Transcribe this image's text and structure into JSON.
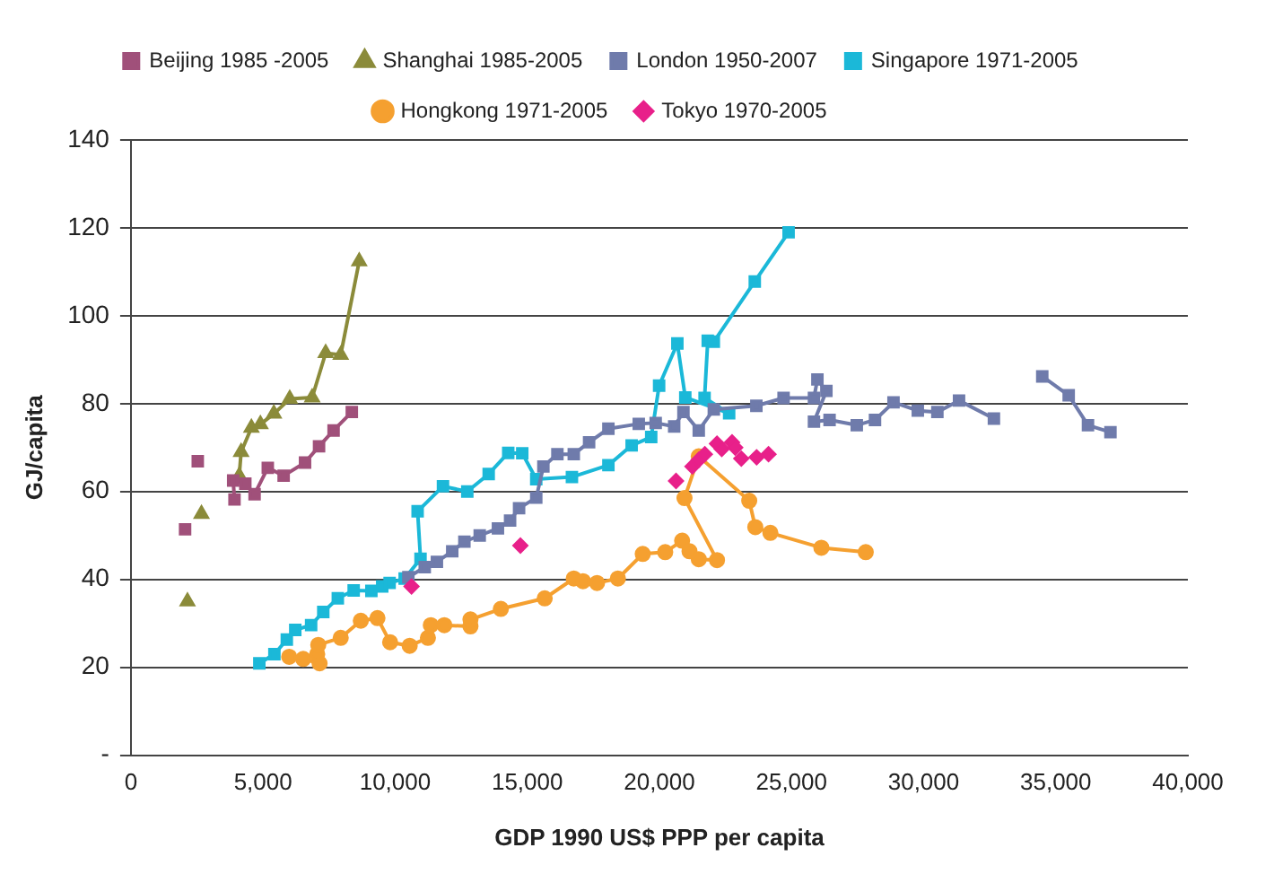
{
  "chart_data": {
    "type": "line",
    "xlabel": "GDP 1990 US$ PPP per capita",
    "ylabel": "GJ/capita",
    "xlim": [
      0,
      40000
    ],
    "xticks": [
      0,
      {
        "value": 5000,
        "label": "5,000"
      },
      {
        "value": 10000,
        "label": "10,000"
      },
      {
        "value": 15000,
        "label": "15,000"
      },
      {
        "value": 20000,
        "label": "20,000"
      },
      {
        "value": 25000,
        "label": "25,000"
      },
      {
        "value": 30000,
        "label": "30,000"
      },
      {
        "value": 35000,
        "label": "35,000"
      },
      {
        "value": 40000,
        "label": "40,000"
      }
    ],
    "ylim": [
      0,
      140
    ],
    "yticks": [
      {
        "value": 0,
        "label": "-"
      },
      20,
      40,
      60,
      80,
      100,
      120,
      140
    ],
    "grid": "y",
    "legend": "top",
    "series": [
      {
        "name": "Beijing 1985 -2005",
        "type": "line",
        "marker": "square",
        "color": "#a0507a",
        "x": [
          2050,
          2300,
          2530,
          3200,
          3920,
          3870,
          4330,
          4680,
          5180,
          5780,
          6590,
          7120,
          7670,
          8360
        ],
        "values": [
          51.4,
          null,
          66.9,
          null,
          58.2,
          62.5,
          61.8,
          59.4,
          65.4,
          63.6,
          66.6,
          70.3,
          73.9,
          78.1
        ]
      },
      {
        "name": "Shanghai 1985-2005",
        "type": "line",
        "marker": "triangle",
        "color": "#8b8b3a",
        "x": [
          2140,
          2400,
          2670,
          3400,
          4100,
          4170,
          4560,
          4900,
          5410,
          6010,
          6860,
          7370,
          7940,
          8640
        ],
        "values": [
          35.0,
          null,
          54.9,
          null,
          63.6,
          69.0,
          74.5,
          75.3,
          77.7,
          81.1,
          81.4,
          91.5,
          91.1,
          112.4
        ]
      },
      {
        "name": "London 1950-2007",
        "type": "line",
        "marker": "square",
        "color": "#6f7bab",
        "x": [
          10500,
          11120,
          11580,
          12160,
          12620,
          13200,
          13890,
          14350,
          14690,
          15340,
          15610,
          16140,
          16760,
          17340,
          18070,
          19220,
          19860,
          20560,
          20910,
          21490,
          22060,
          23670,
          24700,
          25850,
          25980,
          26320,
          25850,
          26440,
          27470,
          28160,
          28860,
          29780,
          30520,
          31340,
          32660,
          33500,
          34490,
          35490,
          36220,
          37070
        ],
        "values": [
          40.5,
          42.8,
          44.0,
          46.4,
          48.6,
          50.0,
          51.6,
          53.4,
          56.2,
          58.6,
          65.7,
          68.5,
          68.5,
          71.2,
          74.3,
          75.4,
          75.6,
          74.8,
          78.1,
          73.9,
          78.7,
          79.5,
          81.3,
          81.3,
          85.5,
          82.9,
          75.9,
          76.3,
          75.1,
          76.3,
          80.3,
          78.4,
          78.1,
          80.7,
          76.6,
          null,
          86.2,
          81.9,
          75.1,
          73.5
        ]
      },
      {
        "name": "Singapore 1971-2005",
        "type": "line",
        "marker": "square",
        "color": "#1bb8d8",
        "x": [
          4860,
          5430,
          5900,
          6220,
          6820,
          7280,
          7830,
          8430,
          9100,
          9510,
          9790,
          10360,
          10960,
          10850,
          11810,
          12730,
          13540,
          14280,
          14810,
          15340,
          16690,
          18070,
          18950,
          19690,
          19990,
          20680,
          20980,
          22640,
          21710,
          21830,
          22060,
          23610,
          24890
        ],
        "values": [
          20.9,
          23.0,
          26.3,
          28.5,
          29.6,
          32.6,
          35.7,
          37.5,
          37.4,
          38.4,
          39.2,
          40.2,
          44.7,
          55.5,
          61.2,
          60.0,
          64.0,
          68.8,
          68.7,
          62.8,
          63.3,
          66.0,
          70.5,
          72.4,
          84.1,
          93.7,
          81.4,
          77.8,
          81.3,
          94.3,
          94.1,
          107.8,
          119.0
        ]
      },
      {
        "name": "Hongkong 1971-2005",
        "type": "line",
        "marker": "circle",
        "color": "#f5a030",
        "x": [
          5990,
          6520,
          7140,
          7050,
          7090,
          7940,
          8700,
          9330,
          9810,
          10550,
          11240,
          11350,
          11860,
          12850,
          12850,
          14000,
          15660,
          16760,
          17110,
          17640,
          18430,
          19370,
          20220,
          20860,
          21140,
          21490,
          22180,
          20950,
          21490,
          23400,
          23630,
          24200,
          26130,
          27810
        ],
        "values": [
          22.4,
          21.9,
          20.9,
          23.0,
          25.1,
          26.7,
          30.6,
          31.2,
          25.7,
          24.9,
          26.7,
          29.6,
          29.6,
          29.3,
          30.9,
          33.3,
          35.7,
          40.2,
          39.6,
          39.2,
          40.2,
          45.8,
          46.2,
          48.8,
          46.4,
          44.6,
          44.4,
          58.5,
          68.0,
          57.9,
          51.9,
          50.6,
          47.2,
          46.2
        ]
      },
      {
        "name": "Tokyo 1970-2005",
        "type": "scatter",
        "marker": "diamond",
        "color": "#e8208a",
        "x": [
          10620,
          14740,
          20630,
          21250,
          21490,
          21720,
          22180,
          22360,
          22750,
          22870,
          23100,
          23680,
          24130
        ],
        "values": [
          38.4,
          47.7,
          62.4,
          65.7,
          67.2,
          68.5,
          70.9,
          69.7,
          71.2,
          70.0,
          67.5,
          67.8,
          68.5
        ]
      }
    ]
  }
}
